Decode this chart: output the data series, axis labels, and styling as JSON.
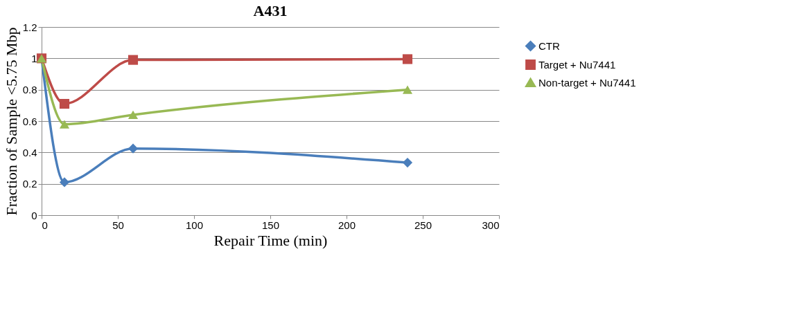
{
  "chart_data": {
    "type": "line",
    "title": "A431",
    "xlabel": "Repair Time (min)",
    "ylabel": "Fraction of Sample <5.75 Mbp",
    "x": [
      0,
      15,
      60,
      240
    ],
    "series": [
      {
        "name": "CTR",
        "color": "#4a7ebb",
        "marker": "diamond",
        "values": [
          1,
          0.21,
          0.425,
          0.335
        ]
      },
      {
        "name": "Target + Nu7441",
        "color": "#be4b48",
        "marker": "square",
        "values": [
          1,
          0.71,
          0.99,
          0.995
        ]
      },
      {
        "name": "Non-target + Nu7441",
        "color": "#98b954",
        "marker": "triangle",
        "values": [
          1,
          0.58,
          0.64,
          0.8
        ]
      }
    ],
    "xlim": [
      0,
      300
    ],
    "xticks": [
      0,
      50,
      100,
      150,
      200,
      250,
      300
    ],
    "ylim": [
      0,
      1.2
    ],
    "yticks": [
      0,
      0.2,
      0.4,
      0.6,
      0.8,
      1,
      1.2
    ],
    "grid": "y",
    "legend": "right"
  }
}
